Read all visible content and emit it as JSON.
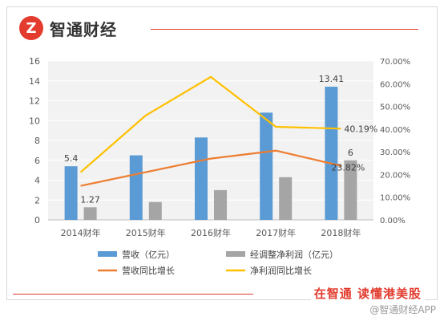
{
  "brand": {
    "logo_text": "Z",
    "name": "智通财经"
  },
  "slogan": "在智通  读懂港美股",
  "watermark": "@智通财经APP",
  "chart_data": {
    "type": "bar",
    "categories": [
      "2014财年",
      "2015财年",
      "2016财年",
      "2017财年",
      "2018财年"
    ],
    "bar_series": [
      {
        "name": "营收（亿元）",
        "color": "#5b9bd5",
        "values": [
          5.4,
          6.5,
          8.3,
          10.8,
          13.41
        ]
      },
      {
        "name": "经调整净利润（亿元）",
        "color": "#a5a5a5",
        "values": [
          1.27,
          1.8,
          3.0,
          4.3,
          6
        ]
      }
    ],
    "line_series": [
      {
        "name": "营收同比增长",
        "color": "#ed7d31",
        "values": [
          0.15,
          0.21,
          0.27,
          0.305,
          0.2382
        ]
      },
      {
        "name": "净利润同比增长",
        "color": "#ffc000",
        "values": [
          0.21,
          0.46,
          0.63,
          0.41,
          0.4019
        ]
      }
    ],
    "data_labels": [
      {
        "series": 0,
        "index": 0,
        "text": "5.4"
      },
      {
        "series": 1,
        "index": 0,
        "text": "1.27"
      },
      {
        "series": 0,
        "index": 4,
        "text": "13.41"
      },
      {
        "series": 1,
        "index": 4,
        "text": "6"
      },
      {
        "line": 1,
        "index": 4,
        "text": "40.19%"
      },
      {
        "line": 0,
        "index": 4,
        "text": "23.82%"
      }
    ],
    "y_left": {
      "min": 0,
      "max": 16,
      "ticks": [
        "0",
        "2",
        "4",
        "6",
        "8",
        "10",
        "12",
        "14",
        "16"
      ]
    },
    "y_right": {
      "min": 0,
      "max": 0.7,
      "ticks": [
        "0.00%",
        "10.00%",
        "20.00%",
        "30.00%",
        "40.00%",
        "50.00%",
        "60.00%",
        "70.00%"
      ]
    },
    "grid": true,
    "legend_position": "bottom"
  }
}
